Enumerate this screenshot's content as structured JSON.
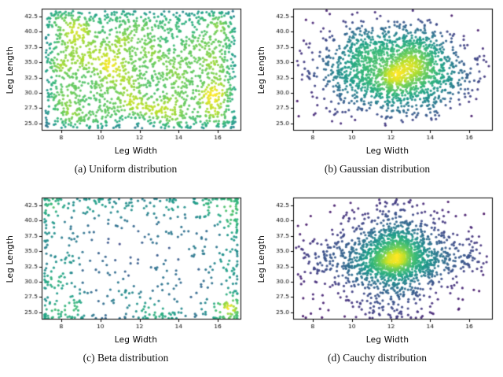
{
  "page": {
    "background": "#ffffff"
  },
  "style": {
    "axis_color": "#000000",
    "tick_label_color": "#000000",
    "colormap": "viridis",
    "colormap_stops": [
      {
        "t": 0.0,
        "color": "#440154"
      },
      {
        "t": 0.125,
        "color": "#482878"
      },
      {
        "t": 0.25,
        "color": "#3e4a89"
      },
      {
        "t": 0.375,
        "color": "#31688e"
      },
      {
        "t": 0.5,
        "color": "#26828e"
      },
      {
        "t": 0.625,
        "color": "#1f9e89"
      },
      {
        "t": 0.75,
        "color": "#35b779"
      },
      {
        "t": 0.875,
        "color": "#6dcd59"
      },
      {
        "t": 0.9375,
        "color": "#b4de2c"
      },
      {
        "t": 1.0,
        "color": "#fde725"
      }
    ]
  },
  "chart_data": [
    {
      "type": "scatter",
      "caption": "(a) Uniform distribution",
      "xlabel": "Leg Width",
      "ylabel": "Leg Length",
      "xlim": [
        7.0,
        17.2
      ],
      "ylim": [
        23.8,
        43.8
      ],
      "xticks": [
        8,
        10,
        12,
        14,
        16
      ],
      "xtick_labels": [
        "8",
        "10",
        "12",
        "14",
        "16"
      ],
      "yticks": [
        25.0,
        27.5,
        30.0,
        32.5,
        35.0,
        37.5,
        40.0,
        42.5
      ],
      "ytick_labels": [
        "25.0",
        "27.5",
        "30.0",
        "32.5",
        "35.0",
        "37.5",
        "40.0",
        "42.5"
      ],
      "color_by": "point density",
      "colormap": "viridis",
      "n_points": 2000,
      "seed": 11,
      "distribution": {
        "name": "uniform",
        "x_min": 7.2,
        "x_max": 16.9,
        "y_min": 24.2,
        "y_max": 43.4
      },
      "grid": false,
      "legend": "none"
    },
    {
      "type": "scatter",
      "caption": "(b) Gaussian distribution",
      "xlabel": "Leg Width",
      "ylabel": "Leg Length",
      "xlim": [
        7.0,
        17.2
      ],
      "ylim": [
        23.8,
        43.8
      ],
      "xticks": [
        8,
        10,
        12,
        14,
        16
      ],
      "xtick_labels": [
        "8",
        "10",
        "12",
        "14",
        "16"
      ],
      "yticks": [
        25.0,
        27.5,
        30.0,
        32.5,
        35.0,
        37.5,
        40.0,
        42.5
      ],
      "ytick_labels": [
        "25.0",
        "27.5",
        "30.0",
        "32.5",
        "35.0",
        "37.5",
        "40.0",
        "42.5"
      ],
      "color_by": "point density",
      "colormap": "viridis",
      "n_points": 1900,
      "seed": 22,
      "distribution": {
        "name": "gaussian",
        "x_mean": 12.2,
        "x_std": 1.9,
        "y_mean": 33.9,
        "y_std": 3.5
      },
      "grid": false,
      "legend": "none"
    },
    {
      "type": "scatter",
      "caption": "(c) Beta distribution",
      "xlabel": "Leg Width",
      "ylabel": "Leg Length",
      "xlim": [
        7.0,
        17.2
      ],
      "ylim": [
        23.8,
        43.8
      ],
      "xticks": [
        8,
        10,
        12,
        14,
        16
      ],
      "xtick_labels": [
        "8",
        "10",
        "12",
        "14",
        "16"
      ],
      "yticks": [
        25.0,
        27.5,
        30.0,
        32.5,
        35.0,
        37.5,
        40.0,
        42.5
      ],
      "ytick_labels": [
        "25.0",
        "27.5",
        "30.0",
        "32.5",
        "35.0",
        "37.5",
        "40.0",
        "42.5"
      ],
      "color_by": "point density",
      "colormap": "viridis",
      "n_points": 650,
      "seed": 33,
      "distribution": {
        "name": "beta",
        "alpha": 0.5,
        "beta": 0.5,
        "x_min": 7.15,
        "x_max": 17.0,
        "y_min": 24.0,
        "y_max": 43.6
      },
      "grid": false,
      "legend": "none"
    },
    {
      "type": "scatter",
      "caption": "(d) Cauchy distribution",
      "xlabel": "Leg Width",
      "ylabel": "Leg Length",
      "xlim": [
        7.0,
        17.2
      ],
      "ylim": [
        23.8,
        43.8
      ],
      "xticks": [
        8,
        10,
        12,
        14,
        16
      ],
      "xtick_labels": [
        "8",
        "10",
        "12",
        "14",
        "16"
      ],
      "yticks": [
        25.0,
        27.5,
        30.0,
        32.5,
        35.0,
        37.5,
        40.0,
        42.5
      ],
      "ytick_labels": [
        "25.0",
        "27.5",
        "30.0",
        "32.5",
        "35.0",
        "37.5",
        "40.0",
        "42.5"
      ],
      "color_by": "point density",
      "colormap": "viridis",
      "n_points": 2000,
      "seed": 44,
      "distribution": {
        "name": "cauchy",
        "x_mean": 12.2,
        "x_scale": 1.1,
        "y_mean": 33.9,
        "y_scale": 2.2
      },
      "grid": false,
      "legend": "none"
    }
  ]
}
